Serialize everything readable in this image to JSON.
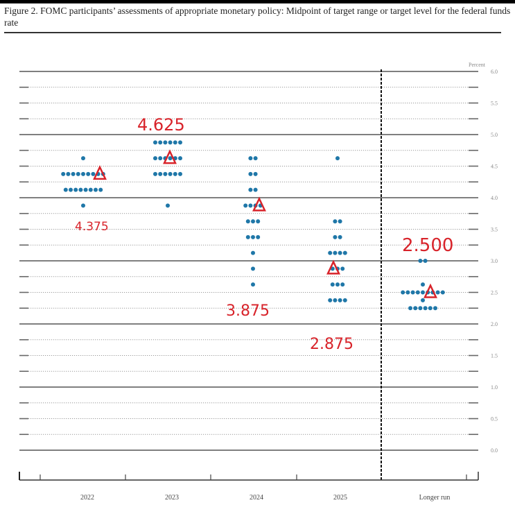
{
  "figure": {
    "title": "Figure 2.  FOMC participants’ assessments of appropriate monetary policy: Midpoint of target range or target level for the federal funds rate",
    "y_unit_label": "Percent"
  },
  "chart_data": {
    "type": "scatter",
    "subtype": "dot-plot",
    "title": "FOMC participants’ assessments of appropriate monetary policy: Midpoint of target range or target level for the federal funds rate",
    "xlabel": "",
    "ylabel": "Percent",
    "ylim": [
      0,
      6
    ],
    "yticks": [
      "0.0",
      "0.5",
      "1.0",
      "1.5",
      "2.0",
      "2.5",
      "3.0",
      "3.5",
      "4.0",
      "4.5",
      "5.0",
      "5.5",
      "6.0"
    ],
    "grid": "dotted every 0.25, solid every 1.0",
    "categories": [
      "2022",
      "2023",
      "2024",
      "2025",
      "Longer run"
    ],
    "series": [
      {
        "name": "2022",
        "points": [
          {
            "rate": 4.625,
            "count": 1
          },
          {
            "rate": 4.375,
            "count": 9
          },
          {
            "rate": 4.125,
            "count": 8
          },
          {
            "rate": 3.875,
            "count": 1
          }
        ]
      },
      {
        "name": "2023",
        "points": [
          {
            "rate": 4.875,
            "count": 6
          },
          {
            "rate": 4.625,
            "count": 6
          },
          {
            "rate": 4.375,
            "count": 6
          },
          {
            "rate": 3.875,
            "count": 1
          }
        ]
      },
      {
        "name": "2024",
        "points": [
          {
            "rate": 4.625,
            "count": 2
          },
          {
            "rate": 4.375,
            "count": 2
          },
          {
            "rate": 4.125,
            "count": 2
          },
          {
            "rate": 3.875,
            "count": 4
          },
          {
            "rate": 3.625,
            "count": 3
          },
          {
            "rate": 3.375,
            "count": 3
          },
          {
            "rate": 3.125,
            "count": 1
          },
          {
            "rate": 2.875,
            "count": 1
          },
          {
            "rate": 2.625,
            "count": 1
          }
        ]
      },
      {
        "name": "2025",
        "points": [
          {
            "rate": 4.625,
            "count": 1
          },
          {
            "rate": 3.625,
            "count": 2
          },
          {
            "rate": 3.375,
            "count": 2
          },
          {
            "rate": 3.125,
            "count": 4
          },
          {
            "rate": 2.875,
            "count": 3
          },
          {
            "rate": 2.625,
            "count": 3
          },
          {
            "rate": 2.375,
            "count": 4
          }
        ]
      },
      {
        "name": "Longer run",
        "points": [
          {
            "rate": 3.0,
            "count": 2
          },
          {
            "rate": 2.625,
            "count": 1
          },
          {
            "rate": 2.5,
            "count": 9
          },
          {
            "rate": 2.375,
            "count": 1
          },
          {
            "rate": 2.25,
            "count": 6
          }
        ]
      }
    ],
    "annotations": [
      {
        "category": "2022",
        "median_marker": 4.375,
        "text": "4.375"
      },
      {
        "category": "2023",
        "median_marker": 4.625,
        "text": "4.625"
      },
      {
        "category": "2024",
        "median_marker": 3.875,
        "text": "3.875"
      },
      {
        "category": "2025",
        "median_marker": 2.875,
        "text": "2.875"
      },
      {
        "category": "Longer run",
        "median_marker": 2.5,
        "text": "2.500"
      }
    ],
    "legend": null
  },
  "colors": {
    "dot": "#1f77a8",
    "annotation": "#d8232a",
    "grid": "#777777"
  }
}
